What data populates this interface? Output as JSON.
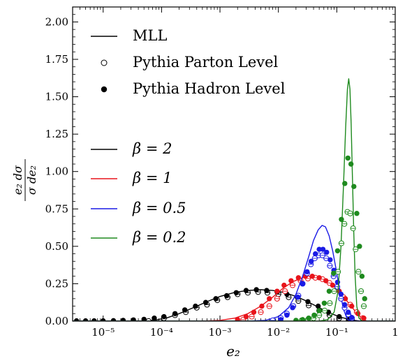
{
  "chart_data": {
    "type": "line",
    "xlabel": "e₂",
    "ylabel": "e₂ dσ / σ de₂",
    "ylabel_parts": {
      "num": "e₂ dσ",
      "den": "σ de₂"
    },
    "xscale": "log",
    "xlim": [
      3e-06,
      1.0
    ],
    "ylim": [
      0.0,
      2.1
    ],
    "x_ticks": [
      {
        "value": 1e-05,
        "label": "10⁻⁵"
      },
      {
        "value": 0.0001,
        "label": "10⁻⁴"
      },
      {
        "value": 0.001,
        "label": "10⁻³"
      },
      {
        "value": 0.01,
        "label": "10⁻²"
      },
      {
        "value": 0.1,
        "label": "10⁻¹"
      },
      {
        "value": 1.0,
        "label": "1"
      }
    ],
    "y_ticks": [
      {
        "value": 0.0,
        "label": "0.00"
      },
      {
        "value": 0.25,
        "label": "0.25"
      },
      {
        "value": 0.5,
        "label": "0.50"
      },
      {
        "value": 0.75,
        "label": "0.75"
      },
      {
        "value": 1.0,
        "label": "1.00"
      },
      {
        "value": 1.25,
        "label": "1.25"
      },
      {
        "value": 1.5,
        "label": "1.50"
      },
      {
        "value": 1.75,
        "label": "1.75"
      },
      {
        "value": 2.0,
        "label": "2.00"
      }
    ],
    "grid": false,
    "legend_style": {
      "placement": "top-left",
      "entries": [
        {
          "label": "MLL",
          "marker": "line",
          "color": "#000000"
        },
        {
          "label": "Pythia Parton Level",
          "marker": "open-circle",
          "color": "#000000"
        },
        {
          "label": "Pythia Hadron Level",
          "marker": "filled-circle",
          "color": "#000000"
        }
      ]
    },
    "legend_beta": {
      "entries": [
        {
          "label": "β = 2",
          "color": "#000000"
        },
        {
          "label": "β = 1",
          "color": "#e8141b"
        },
        {
          "label": "β = 0.5",
          "color": "#1a1ae6"
        },
        {
          "label": "β = 0.2",
          "color": "#1e8a1e"
        }
      ]
    },
    "series": [
      {
        "beta": "2",
        "color": "#000000",
        "mll": [
          [
            1e-06,
            0.0
          ],
          [
            2e-05,
            0.0
          ],
          [
            5e-05,
            0.002
          ],
          [
            8e-05,
            0.008
          ],
          [
            0.00012,
            0.02
          ],
          [
            0.0002,
            0.05
          ],
          [
            0.00035,
            0.09
          ],
          [
            0.0006,
            0.13
          ],
          [
            0.001,
            0.165
          ],
          [
            0.0018,
            0.192
          ],
          [
            0.003,
            0.205
          ],
          [
            0.005,
            0.21
          ],
          [
            0.008,
            0.205
          ],
          [
            0.013,
            0.19
          ],
          [
            0.02,
            0.165
          ],
          [
            0.03,
            0.135
          ],
          [
            0.05,
            0.09
          ],
          [
            0.08,
            0.05
          ],
          [
            0.12,
            0.025
          ],
          [
            0.18,
            0.008
          ],
          [
            0.25,
            0.0
          ],
          [
            1.0,
            0.0
          ]
        ],
        "parton": [
          [
            6e-05,
            0.0
          ],
          [
            0.00011,
            0.02
          ],
          [
            0.00017,
            0.04
          ],
          [
            0.00026,
            0.06
          ],
          [
            0.0004,
            0.09
          ],
          [
            0.0006,
            0.11
          ],
          [
            0.0009,
            0.14
          ],
          [
            0.00135,
            0.16
          ],
          [
            0.002,
            0.18
          ],
          [
            0.003,
            0.19
          ],
          [
            0.0045,
            0.195
          ],
          [
            0.0065,
            0.19
          ],
          [
            0.01,
            0.18
          ],
          [
            0.015,
            0.16
          ],
          [
            0.022,
            0.135
          ],
          [
            0.033,
            0.105
          ],
          [
            0.05,
            0.07
          ],
          [
            0.075,
            0.04
          ],
          [
            0.11,
            0.02
          ],
          [
            0.16,
            0.008
          ]
        ],
        "hadron": [
          [
            3.5e-06,
            0.002
          ],
          [
            5e-06,
            0.002
          ],
          [
            7e-06,
            0.002
          ],
          [
            1e-05,
            0.002
          ],
          [
            1.5e-05,
            0.003
          ],
          [
            2.2e-05,
            0.005
          ],
          [
            3.3e-05,
            0.008
          ],
          [
            5e-05,
            0.012
          ],
          [
            7.5e-05,
            0.02
          ],
          [
            0.00011,
            0.03
          ],
          [
            0.00017,
            0.05
          ],
          [
            0.00025,
            0.075
          ],
          [
            0.00038,
            0.1
          ],
          [
            0.00057,
            0.125
          ],
          [
            0.00085,
            0.15
          ],
          [
            0.0013,
            0.17
          ],
          [
            0.0019,
            0.19
          ],
          [
            0.0028,
            0.205
          ],
          [
            0.0042,
            0.21
          ],
          [
            0.0063,
            0.205
          ],
          [
            0.0095,
            0.195
          ],
          [
            0.014,
            0.18
          ],
          [
            0.021,
            0.16
          ],
          [
            0.032,
            0.13
          ],
          [
            0.048,
            0.1
          ],
          [
            0.072,
            0.06
          ],
          [
            0.11,
            0.03
          ],
          [
            0.16,
            0.01
          ]
        ]
      },
      {
        "beta": "1",
        "color": "#e8141b",
        "mll": [
          [
            1e-06,
            0.0
          ],
          [
            0.0005,
            0.0
          ],
          [
            0.001,
            0.005
          ],
          [
            0.0018,
            0.02
          ],
          [
            0.003,
            0.05
          ],
          [
            0.005,
            0.1
          ],
          [
            0.008,
            0.16
          ],
          [
            0.012,
            0.22
          ],
          [
            0.018,
            0.265
          ],
          [
            0.026,
            0.29
          ],
          [
            0.036,
            0.3
          ],
          [
            0.05,
            0.295
          ],
          [
            0.07,
            0.27
          ],
          [
            0.095,
            0.225
          ],
          [
            0.13,
            0.165
          ],
          [
            0.175,
            0.1
          ],
          [
            0.23,
            0.045
          ],
          [
            0.29,
            0.01
          ],
          [
            0.33,
            0.0
          ],
          [
            1.0,
            0.0
          ]
        ],
        "parton": [
          [
            0.0025,
            0.01
          ],
          [
            0.0035,
            0.03
          ],
          [
            0.005,
            0.06
          ],
          [
            0.007,
            0.1
          ],
          [
            0.0095,
            0.15
          ],
          [
            0.013,
            0.2
          ],
          [
            0.0175,
            0.24
          ],
          [
            0.024,
            0.27
          ],
          [
            0.032,
            0.285
          ],
          [
            0.043,
            0.29
          ],
          [
            0.057,
            0.28
          ],
          [
            0.075,
            0.255
          ],
          [
            0.1,
            0.21
          ],
          [
            0.13,
            0.16
          ],
          [
            0.17,
            0.11
          ],
          [
            0.22,
            0.06
          ],
          [
            0.28,
            0.02
          ]
        ],
        "hadron": [
          [
            0.002,
            0.01
          ],
          [
            0.0028,
            0.03
          ],
          [
            0.0038,
            0.06
          ],
          [
            0.0052,
            0.1
          ],
          [
            0.007,
            0.15
          ],
          [
            0.0095,
            0.2
          ],
          [
            0.0125,
            0.24
          ],
          [
            0.0165,
            0.27
          ],
          [
            0.022,
            0.29
          ],
          [
            0.029,
            0.3
          ],
          [
            0.038,
            0.3
          ],
          [
            0.05,
            0.29
          ],
          [
            0.065,
            0.27
          ],
          [
            0.085,
            0.24
          ],
          [
            0.11,
            0.2
          ],
          [
            0.14,
            0.15
          ],
          [
            0.18,
            0.1
          ],
          [
            0.23,
            0.05
          ],
          [
            0.29,
            0.02
          ]
        ]
      },
      {
        "beta": "0.5",
        "color": "#1a1ae6",
        "mll": [
          [
            1e-06,
            0.0
          ],
          [
            0.003,
            0.0
          ],
          [
            0.006,
            0.005
          ],
          [
            0.01,
            0.03
          ],
          [
            0.015,
            0.09
          ],
          [
            0.02,
            0.18
          ],
          [
            0.026,
            0.3
          ],
          [
            0.033,
            0.43
          ],
          [
            0.04,
            0.54
          ],
          [
            0.048,
            0.61
          ],
          [
            0.056,
            0.64
          ],
          [
            0.064,
            0.63
          ],
          [
            0.074,
            0.57
          ],
          [
            0.085,
            0.47
          ],
          [
            0.098,
            0.34
          ],
          [
            0.113,
            0.2
          ],
          [
            0.13,
            0.08
          ],
          [
            0.15,
            0.015
          ],
          [
            0.17,
            0.0
          ],
          [
            1.0,
            0.0
          ]
        ],
        "parton": [
          [
            0.008,
            0.005
          ],
          [
            0.011,
            0.02
          ],
          [
            0.014,
            0.05
          ],
          [
            0.018,
            0.1
          ],
          [
            0.022,
            0.17
          ],
          [
            0.026,
            0.25
          ],
          [
            0.031,
            0.32
          ],
          [
            0.036,
            0.38
          ],
          [
            0.042,
            0.42
          ],
          [
            0.049,
            0.44
          ],
          [
            0.057,
            0.44
          ],
          [
            0.066,
            0.42
          ],
          [
            0.076,
            0.37
          ],
          [
            0.088,
            0.3
          ],
          [
            0.102,
            0.23
          ],
          [
            0.118,
            0.15
          ],
          [
            0.136,
            0.09
          ],
          [
            0.158,
            0.045
          ],
          [
            0.182,
            0.02
          ]
        ],
        "hadron": [
          [
            0.011,
            0.01
          ],
          [
            0.014,
            0.04
          ],
          [
            0.0175,
            0.09
          ],
          [
            0.0215,
            0.16
          ],
          [
            0.026,
            0.25
          ],
          [
            0.031,
            0.33
          ],
          [
            0.0365,
            0.4
          ],
          [
            0.043,
            0.45
          ],
          [
            0.05,
            0.48
          ],
          [
            0.058,
            0.48
          ],
          [
            0.067,
            0.46
          ],
          [
            0.077,
            0.41
          ],
          [
            0.089,
            0.34
          ],
          [
            0.103,
            0.26
          ],
          [
            0.118,
            0.18
          ],
          [
            0.136,
            0.11
          ],
          [
            0.157,
            0.06
          ],
          [
            0.18,
            0.025
          ]
        ]
      },
      {
        "beta": "0.2",
        "color": "#1e8a1e",
        "mll": [
          [
            1e-06,
            0.0
          ],
          [
            0.05,
            0.0
          ],
          [
            0.07,
            0.01
          ],
          [
            0.09,
            0.06
          ],
          [
            0.105,
            0.2
          ],
          [
            0.118,
            0.5
          ],
          [
            0.13,
            0.9
          ],
          [
            0.142,
            1.3
          ],
          [
            0.152,
            1.55
          ],
          [
            0.16,
            1.62
          ],
          [
            0.168,
            1.55
          ],
          [
            0.176,
            1.32
          ],
          [
            0.185,
            0.97
          ],
          [
            0.195,
            0.6
          ],
          [
            0.206,
            0.3
          ],
          [
            0.22,
            0.1
          ],
          [
            0.24,
            0.02
          ],
          [
            0.27,
            0.0
          ],
          [
            1.0,
            0.0
          ]
        ],
        "parton": [
          [
            0.025,
            0.005
          ],
          [
            0.032,
            0.01
          ],
          [
            0.04,
            0.02
          ],
          [
            0.05,
            0.04
          ],
          [
            0.062,
            0.07
          ],
          [
            0.076,
            0.12
          ],
          [
            0.09,
            0.2
          ],
          [
            0.105,
            0.33
          ],
          [
            0.12,
            0.52
          ],
          [
            0.135,
            0.65
          ],
          [
            0.152,
            0.73
          ],
          [
            0.17,
            0.72
          ],
          [
            0.19,
            0.62
          ],
          [
            0.21,
            0.48
          ],
          [
            0.235,
            0.33
          ],
          [
            0.26,
            0.2
          ],
          [
            0.29,
            0.1
          ]
        ],
        "hadron": [
          [
            0.02,
            0.005
          ],
          [
            0.026,
            0.01
          ],
          [
            0.033,
            0.02
          ],
          [
            0.041,
            0.04
          ],
          [
            0.05,
            0.07
          ],
          [
            0.061,
            0.12
          ],
          [
            0.074,
            0.2
          ],
          [
            0.088,
            0.32
          ],
          [
            0.103,
            0.47
          ],
          [
            0.12,
            0.68
          ],
          [
            0.137,
            0.92
          ],
          [
            0.155,
            1.09
          ],
          [
            0.175,
            1.05
          ],
          [
            0.196,
            0.9
          ],
          [
            0.22,
            0.72
          ],
          [
            0.245,
            0.5
          ],
          [
            0.27,
            0.3
          ],
          [
            0.3,
            0.15
          ]
        ]
      }
    ]
  }
}
